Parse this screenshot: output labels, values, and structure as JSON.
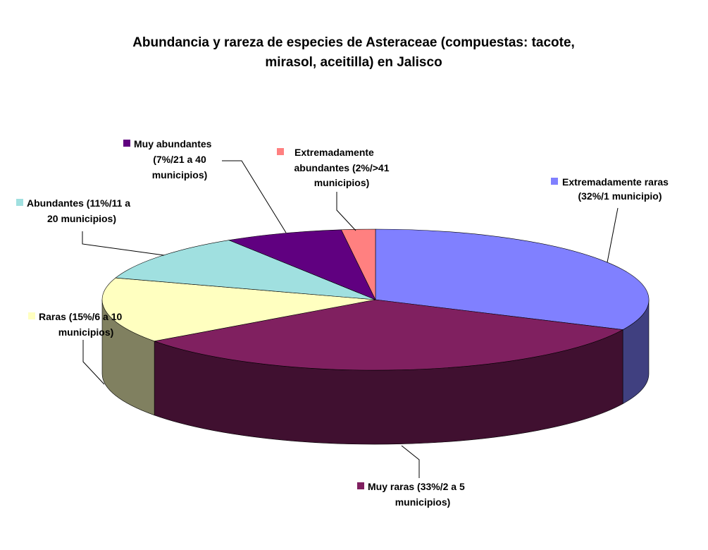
{
  "chart_data": {
    "type": "pie",
    "style": "3d",
    "title": "Abundancia y rareza de especies de Asteraceae (compuestas: tacote, mirasol, aceitilla) en Jalisco",
    "title_lines": [
      "Abundancia y rareza de especies de Asteraceae (compuestas: tacote,",
      "mirasol, aceitilla) en Jalisco"
    ],
    "legend": "labels beside slices",
    "slices": [
      {
        "name": "Extremadamente raras",
        "value": 32,
        "color": "#8080ff",
        "side_color": "#404080",
        "label_lines": [
          "Extremadamente raras",
          "(32%/1 municipio)"
        ]
      },
      {
        "name": "Muy raras",
        "value": 33,
        "color": "#802060",
        "side_color": "#401030",
        "label_lines": [
          "Muy raras (33%/2 a 5",
          "municipios)"
        ]
      },
      {
        "name": "Raras",
        "value": 15,
        "color": "#ffffc0",
        "side_color": "#808060",
        "label_lines": [
          "Raras (15%/6 a 10",
          "municipios)"
        ]
      },
      {
        "name": "Abundantes",
        "value": 11,
        "color": "#a0e0e0",
        "side_color": "#507070",
        "label_lines": [
          "Abundantes (11%/11 a",
          "20 municipios)"
        ]
      },
      {
        "name": "Muy abundantes",
        "value": 7,
        "color": "#600080",
        "side_color": "#300040",
        "label_lines": [
          "Muy abundantes",
          "(7%/21 a 40",
          "municipios)"
        ]
      },
      {
        "name": "Extremadamente abundantes",
        "value": 2,
        "color": "#ff8080",
        "side_color": "#804040",
        "label_lines": [
          "Extremadamente",
          "abundantes (2%/>41",
          "municipios)"
        ]
      }
    ]
  }
}
